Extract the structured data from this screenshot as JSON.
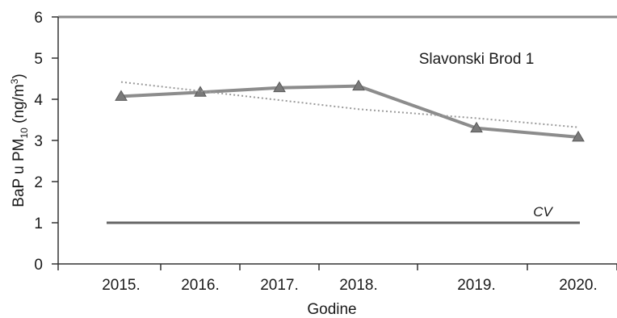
{
  "chart_data": {
    "type": "line",
    "title": "",
    "xlabel": "Godine",
    "ylabel": "BaP u PM10 (ng/m3)",
    "ylabel_parts": {
      "main": "BaP u PM",
      "sub": "10",
      "unit_open": " (ng/m",
      "sup": "3",
      "unit_close": ")"
    },
    "annotation": "Slavonski Brod 1",
    "categories": [
      "2015.",
      "2016.",
      "2017.",
      "2018.",
      "2019.",
      "2020."
    ],
    "ylim": [
      0,
      6
    ],
    "yticks": [
      "0",
      "1",
      "2",
      "3",
      "4",
      "5",
      "6"
    ],
    "grid": false,
    "series": [
      {
        "name": "",
        "style": "solid-markers",
        "values": [
          4.07,
          4.17,
          4.28,
          4.32,
          3.3,
          3.08
        ],
        "color": "#8c8c8c"
      },
      {
        "name": "",
        "style": "dotted-trend",
        "values": [
          4.42,
          4.2,
          3.98,
          3.76,
          3.54,
          3.32
        ],
        "color": "#9a9a9a"
      }
    ],
    "reference_line": {
      "label": "CV",
      "value": 1,
      "color": "#666666"
    }
  }
}
